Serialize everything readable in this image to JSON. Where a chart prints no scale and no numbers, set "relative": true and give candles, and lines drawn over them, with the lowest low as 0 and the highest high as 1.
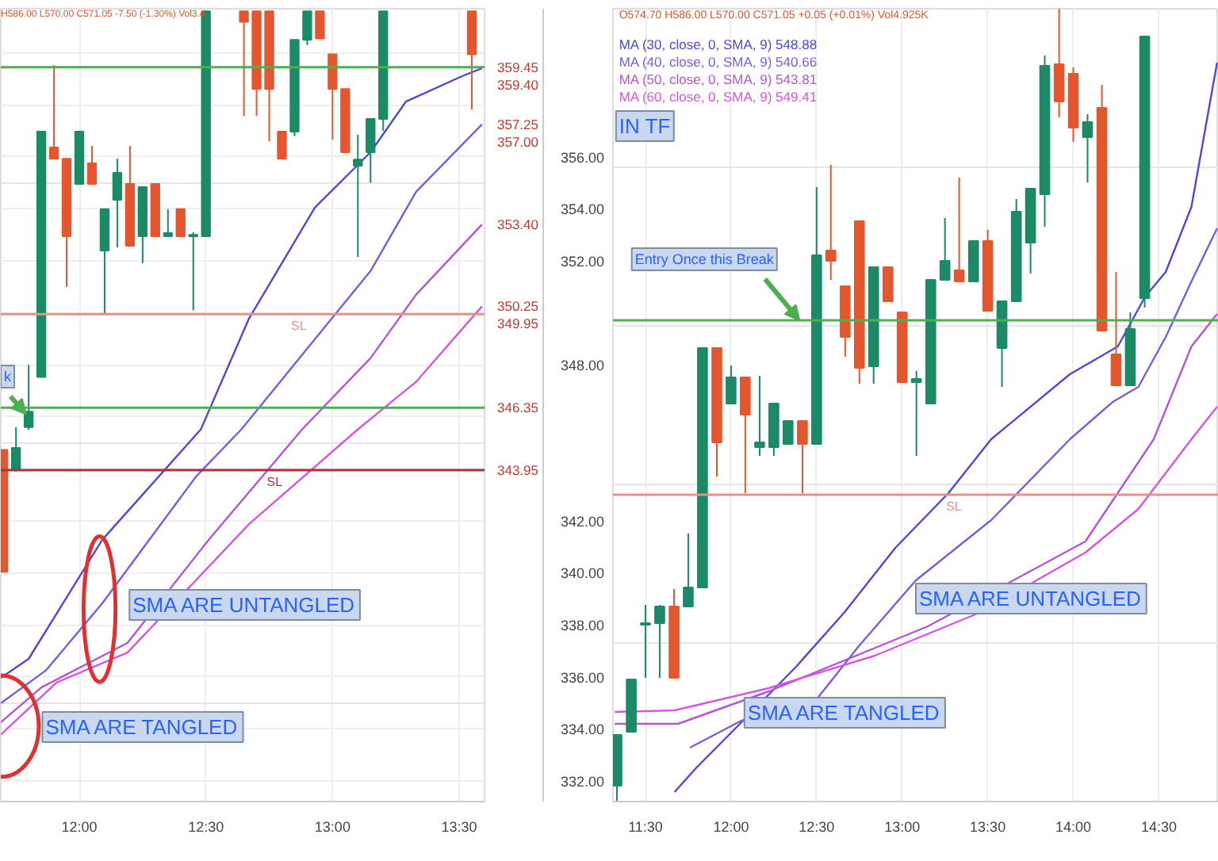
{
  "chart_data": [
    {
      "type": "candlestick",
      "x": [
        11.7,
        11.75,
        11.8,
        11.85,
        11.9,
        11.95,
        12.0,
        12.05,
        12.1,
        12.15,
        12.2,
        12.25,
        12.3,
        12.35,
        12.4,
        12.45,
        12.5,
        12.65,
        12.7,
        12.75,
        12.8,
        12.85,
        12.9,
        12.95,
        13.0,
        13.05,
        13.1,
        13.15,
        13.2,
        13.55
      ],
      "ohlc": [
        [
          344.73,
          344.73,
          340.04,
          340.04
        ],
        [
          344.0,
          345.6,
          343.9,
          344.8
        ],
        [
          345.6,
          348.0,
          345.5,
          346.2
        ],
        [
          347.53,
          357.0,
          347.53,
          356.97
        ],
        [
          356.36,
          359.53,
          355.93,
          355.93
        ],
        [
          355.93,
          355.93,
          351.0,
          352.95
        ],
        [
          354.96,
          356.97,
          354.96,
          356.97
        ],
        [
          355.75,
          356.42,
          354.96,
          354.96
        ],
        [
          352.4,
          353.99,
          349.97,
          353.99
        ],
        [
          354.35,
          355.93,
          352.52,
          355.39
        ],
        [
          354.96,
          356.42,
          352.58,
          352.58
        ],
        [
          352.95,
          354.84,
          351.91,
          354.84
        ],
        [
          354.96,
          354.96,
          352.95,
          352.95
        ],
        [
          352.95,
          353.99,
          352.95,
          353.07
        ],
        [
          353.99,
          353.99,
          352.95,
          352.95
        ],
        [
          352.95,
          353.1,
          350.1,
          353.0
        ],
        [
          352.95,
          361.6,
          352.95,
          361.6
        ],
        [
          361.6,
          361.6,
          357.58,
          361.2
        ],
        [
          361.6,
          361.6,
          357.58,
          358.61
        ],
        [
          361.6,
          361.6,
          356.6,
          358.61
        ],
        [
          356.97,
          356.97,
          355.93,
          355.93
        ],
        [
          356.97,
          360.5,
          356.8,
          360.5
        ],
        [
          360.5,
          361.6,
          360.3,
          361.6
        ],
        [
          361.6,
          361.6,
          360.56,
          360.56
        ],
        [
          359.95,
          359.95,
          356.67,
          358.61
        ],
        [
          358.61,
          358.61,
          356.18,
          356.18
        ],
        [
          355.66,
          356.85,
          352.15,
          355.9
        ],
        [
          356.18,
          357.46,
          355.0,
          357.46
        ],
        [
          357.46,
          361.6,
          357.0,
          361.6
        ],
        [
          361.6,
          361.6,
          357.82,
          359.95
        ]
      ],
      "colors": [
        "#e4572e",
        "#1b8a66",
        "#1b8a66",
        "#1b8a66",
        "#e4572e",
        "#e4572e",
        "#1b8a66",
        "#e4572e",
        "#1b8a66",
        "#1b8a66",
        "#e4572e",
        "#1b8a66",
        "#e4572e",
        "#1b8a66",
        "#e4572e",
        "#1b8a66",
        "#1b8a66",
        "#e4572e",
        "#e4572e",
        "#e4572e",
        "#e4572e",
        "#1b8a66",
        "#1b8a66",
        "#e4572e",
        "#e4572e",
        "#e4572e",
        "#1b8a66",
        "#1b8a66",
        "#1b8a66",
        "#e4572e"
      ],
      "series": [
        {
          "type": "line",
          "color": "#4a4ad8",
          "x": [
            11.69,
            11.8,
            12.09,
            12.48,
            12.67,
            12.93,
            13.15,
            13.29,
            13.51,
            13.59
          ],
          "values": [
            335.96,
            336.69,
            341.26,
            345.52,
            349.78,
            354.05,
            356.18,
            358.13,
            359.1,
            359.41
          ]
        },
        {
          "type": "line",
          "color": "#7a5ce0",
          "x": [
            11.69,
            11.87,
            12.09,
            12.46,
            12.64,
            13.15,
            13.33,
            13.59
          ],
          "values": [
            334.98,
            336.26,
            338.82,
            343.69,
            345.52,
            351.61,
            354.66,
            357.25
          ]
        },
        {
          "type": "line",
          "color": "#b455d6",
          "x": [
            11.69,
            11.85,
            12.19,
            12.51,
            12.88,
            13.15,
            13.33,
            13.59
          ],
          "values": [
            334.25,
            335.59,
            337.3,
            341.26,
            345.52,
            348.26,
            350.7,
            353.4
          ]
        },
        {
          "type": "line",
          "color": "#d855e0",
          "x": [
            11.69,
            11.91,
            12.19,
            12.67,
            13.1,
            13.33,
            13.59
          ],
          "values": [
            333.77,
            335.78,
            336.93,
            341.87,
            345.52,
            347.35,
            350.25
          ]
        }
      ],
      "xlim": [
        11.69,
        13.6
      ],
      "xticks": [
        {
          "value": 12,
          "label": "12:00"
        },
        {
          "value": 12.5,
          "label": "12:30"
        },
        {
          "value": 13,
          "label": "13:00"
        },
        {
          "value": 13.5,
          "label": "13:30"
        }
      ],
      "ylim": [
        331.2,
        361.7
      ],
      "yticks": [
        {
          "value": 332,
          "label": "332.00"
        },
        {
          "value": 334,
          "label": "334.00"
        },
        {
          "value": 336,
          "label": "336.00"
        },
        {
          "value": 338,
          "label": "338.00"
        },
        {
          "value": 340,
          "label": "340.00"
        },
        {
          "value": 342,
          "label": "342.00"
        },
        {
          "value": 344,
          "label": null
        },
        {
          "value": 346,
          "label": null
        },
        {
          "value": 348,
          "label": "348.00"
        },
        {
          "value": 350,
          "label": null
        },
        {
          "value": 352,
          "label": "352.00"
        },
        {
          "value": 354,
          "label": "354.00"
        },
        {
          "value": 356,
          "label": "356.00"
        },
        {
          "value": 358,
          "label": null
        },
        {
          "value": 360,
          "label": null
        }
      ],
      "grid": true,
      "ref_lines": [
        {
          "axis": "y",
          "value": 359.45,
          "color": "#4caf50"
        },
        {
          "axis": "y",
          "value": 346.35,
          "color": "#4caf50"
        },
        {
          "axis": "y",
          "value": 349.95,
          "label": "SL",
          "color": "#e89090"
        },
        {
          "axis": "y",
          "value": 343.95,
          "label": "SL",
          "color": "#b0303a"
        }
      ],
      "annotations": [
        "H586.00 L570.00 C571.05 -7.50 (-1.30%) Vol3.4",
        {
          "text": "k",
          "x": 11.79,
          "y": 346.1
        },
        "SMA ARE UNTANGLED",
        "SMA ARE TANGLED",
        {
          "text": "359.45",
          "x": 13.6,
          "y": 359.45
        },
        {
          "text": "359.40",
          "x": 13.6,
          "y": 359.4
        },
        {
          "text": "357.25",
          "x": 13.6,
          "y": 357.25
        },
        {
          "text": "357.00",
          "x": 13.6,
          "y": 357.0
        },
        {
          "text": "353.40",
          "x": 13.6,
          "y": 353.4
        },
        {
          "text": "350.25",
          "x": 13.6,
          "y": 350.25
        },
        {
          "text": "349.95",
          "x": 13.6,
          "y": 349.95
        },
        {
          "text": "346.35",
          "x": 13.6,
          "y": 346.35
        },
        {
          "text": "343.95",
          "x": 13.6,
          "y": 343.95
        }
      ]
    },
    {
      "type": "candlestick",
      "relative": true,
      "x": [
        11.333,
        11.417,
        11.5,
        11.583,
        11.667,
        11.75,
        11.833,
        11.917,
        12.0,
        12.083,
        12.167,
        12.25,
        12.333,
        12.417,
        12.5,
        12.583,
        12.667,
        12.75,
        12.833,
        12.917,
        13.0,
        13.083,
        13.167,
        13.25,
        13.333,
        13.417,
        13.5,
        13.583,
        13.667,
        13.75,
        13.833,
        13.917,
        14.0,
        14.083,
        14.167,
        14.25,
        14.333,
        14.417
      ],
      "ohlc": [
        [
          0.02,
          0.084,
          0,
          0.084
        ],
        [
          0.088,
          0.154,
          0.088,
          0.154
        ],
        [
          0.223,
          0.248,
          0.156,
          0.225
        ],
        [
          0.225,
          0.248,
          0.156,
          0.246
        ],
        [
          0.246,
          0.268,
          0.156,
          0.156
        ],
        [
          0.246,
          0.338,
          0.246,
          0.27
        ],
        [
          0.27,
          0.572,
          0.27,
          0.572
        ],
        [
          0.572,
          0.572,
          0.41,
          0.453
        ],
        [
          0.502,
          0.55,
          0.502,
          0.535
        ],
        [
          0.535,
          0.535,
          0.389,
          0.488
        ],
        [
          0.447,
          0.537,
          0.436,
          0.453
        ],
        [
          0.447,
          0.502,
          0.436,
          0.502
        ],
        [
          0.451,
          0.48,
          0.451,
          0.48
        ],
        [
          0.48,
          0.48,
          0.389,
          0.451
        ],
        [
          0.451,
          0.775,
          0.451,
          0.689
        ],
        [
          0.695,
          0.803,
          0.658,
          0.682
        ],
        [
          0.65,
          0.65,
          0.561,
          0.586
        ],
        [
          0.732,
          0.732,
          0.527,
          0.547
        ],
        [
          0.549,
          0.674,
          0.527,
          0.674
        ],
        [
          0.674,
          0.674,
          0.631,
          0.631
        ],
        [
          0.617,
          0.617,
          0.529,
          0.529
        ],
        [
          0.529,
          0.543,
          0.436,
          0.533
        ],
        [
          0.502,
          0.658,
          0.502,
          0.658
        ],
        [
          0.658,
          0.736,
          0.658,
          0.682
        ],
        [
          0.67,
          0.787,
          0.656,
          0.656
        ],
        [
          0.656,
          0.707,
          0.656,
          0.707
        ],
        [
          0.707,
          0.721,
          0.619,
          0.619
        ],
        [
          0.572,
          0.631,
          0.523,
          0.631
        ],
        [
          0.631,
          0.76,
          0.631,
          0.744
        ],
        [
          0.705,
          0.773,
          0.666,
          0.773
        ],
        [
          0.766,
          0.941,
          0.725,
          0.928
        ],
        [
          0.93,
          1.0,
          0.863,
          0.883
        ],
        [
          0.918,
          0.926,
          0.832,
          0.85
        ],
        [
          0.838,
          0.867,
          0.781,
          0.857
        ],
        [
          0.875,
          0.904,
          0.594,
          0.594
        ],
        [
          0.564,
          0.668,
          0.525,
          0.525
        ],
        [
          0.525,
          0.617,
          0.525,
          0.596
        ],
        [
          0.635,
          0.965,
          0.623,
          0.965
        ]
      ],
      "colors": [
        "#1b8a66",
        "#1b8a66",
        "#1b8a66",
        "#1b8a66",
        "#e4572e",
        "#1b8a66",
        "#1b8a66",
        "#e4572e",
        "#1b8a66",
        "#e4572e",
        "#1b8a66",
        "#1b8a66",
        "#1b8a66",
        "#e4572e",
        "#1b8a66",
        "#e4572e",
        "#e4572e",
        "#e4572e",
        "#1b8a66",
        "#e4572e",
        "#e4572e",
        "#1b8a66",
        "#1b8a66",
        "#1b8a66",
        "#e4572e",
        "#1b8a66",
        "#e4572e",
        "#1b8a66",
        "#1b8a66",
        "#1b8a66",
        "#1b8a66",
        "#e4572e",
        "#e4572e",
        "#1b8a66",
        "#e4572e",
        "#e4572e",
        "#1b8a66",
        "#1b8a66"
      ],
      "series": [
        {
          "type": "line",
          "name": "MA (30, close, 0, SMA, 9) 548.88",
          "color": "#4a4ad8",
          "x": [
            11.67,
            11.79,
            12.07,
            12.38,
            12.66,
            12.96,
            13.27,
            13.52,
            13.98,
            14.26,
            14.42,
            14.54,
            14.69,
            14.84
          ],
          "values": [
            0.012,
            0.041,
            0.102,
            0.17,
            0.238,
            0.32,
            0.389,
            0.457,
            0.539,
            0.574,
            0.637,
            0.668,
            0.75,
            0.932
          ]
        },
        {
          "type": "line",
          "name": "MA (40, close, 0, SMA, 9) 540.66",
          "color": "#7a5ce0",
          "x": [
            11.76,
            12.06,
            12.5,
            12.75,
            13.08,
            13.52,
            13.98,
            14.23,
            14.38,
            14.54,
            14.69,
            14.84
          ],
          "values": [
            0.068,
            0.102,
            0.129,
            0.197,
            0.279,
            0.355,
            0.457,
            0.504,
            0.523,
            0.586,
            0.656,
            0.723
          ]
        },
        {
          "type": "line",
          "name": "MA (50, close, 0, SMA, 9) 543.81",
          "color": "#b455d6",
          "x": [
            11.32,
            11.69,
            12.22,
            13.15,
            13.77,
            14.07,
            14.47,
            14.69,
            14.84
          ],
          "values": [
            0.098,
            0.098,
            0.139,
            0.221,
            0.293,
            0.328,
            0.457,
            0.574,
            0.615
          ]
        },
        {
          "type": "line",
          "name": "MA (60, close, 0, SMA, 9) 549.41",
          "color": "#d855e0",
          "x": [
            11.32,
            11.67,
            12.22,
            12.84,
            13.45,
            14.07,
            14.38,
            14.69,
            14.84
          ],
          "values": [
            0.113,
            0.115,
            0.143,
            0.184,
            0.238,
            0.314,
            0.369,
            0.457,
            0.498
          ]
        }
      ],
      "xlim": [
        11.31,
        14.85
      ],
      "xticks": [
        {
          "value": 11.5,
          "label": "11:30"
        },
        {
          "value": 12,
          "label": "12:00"
        },
        {
          "value": 12.5,
          "label": "12:30"
        },
        {
          "value": 13,
          "label": "13:00"
        },
        {
          "value": 13.5,
          "label": "13:30"
        },
        {
          "value": 14,
          "label": "14:00"
        },
        {
          "value": 14.5,
          "label": "14:30"
        }
      ],
      "grid": "x",
      "legend": "top left",
      "ref_lines": [
        {
          "axis": "y",
          "value": 0.607,
          "color": "#4caf50"
        },
        {
          "axis": "y",
          "value": 0.387,
          "label": "SL",
          "color": "#e89090"
        }
      ],
      "annotations": [
        "O574.70 H586.00 L570.00 C571.05 +0.05 (+0.01%) Vol4.925K",
        "IN TF",
        {
          "text": "Entry Once this Break",
          "x": 12.4,
          "y": 0.607
        },
        "SMA ARE UNTANGLED",
        "SMA ARE TANGLED"
      ]
    }
  ]
}
